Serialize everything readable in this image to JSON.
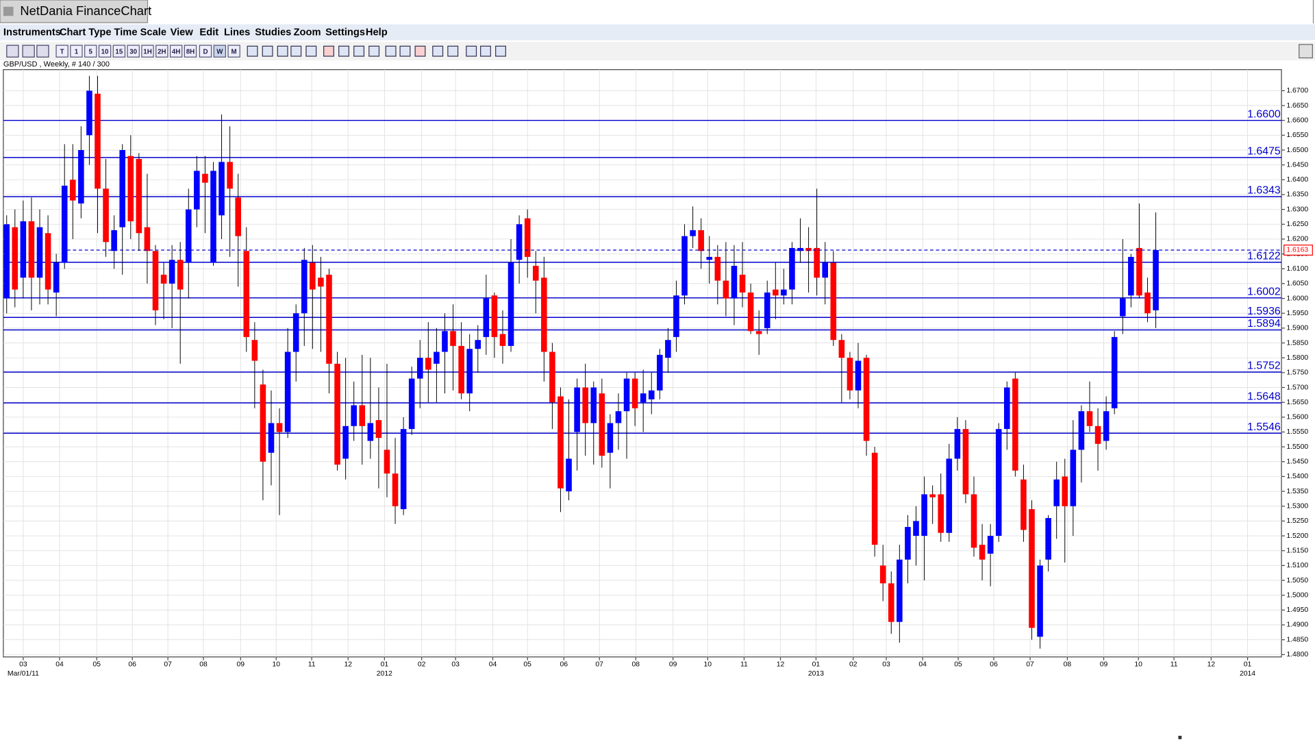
{
  "app": {
    "title": "NetDania FinanceChart",
    "menu": [
      "Instruments",
      "Chart Type",
      "Time Scale",
      "View",
      "Edit",
      "Lines",
      "Studies",
      "Zoom",
      "Settings",
      "Help"
    ],
    "toolbar": [
      "T",
      "1",
      "5",
      "10",
      "15",
      "30",
      "1H",
      "2H",
      "4H",
      "8H",
      "D",
      "W",
      "M"
    ]
  },
  "chart_data": {
    "type": "candlestick",
    "subtitle": "GBP/USD , Weekly, # 140 / 300",
    "up_color": "#0000ff",
    "down_color": "#ff0000",
    "level_color": "#0000cc",
    "grid": true,
    "xlim": [
      -0.4,
      154.2
    ],
    "ylim": [
      1.4792,
      1.6771
    ],
    "open": [
      1.6,
      1.624,
      1.607,
      1.626,
      1.607,
      1.622,
      1.602,
      1.612,
      1.64,
      1.632,
      1.655,
      1.669,
      1.637,
      1.616,
      1.624,
      1.648,
      1.647,
      1.624,
      1.616,
      1.608,
      1.605,
      1.613,
      1.612,
      1.63,
      1.642,
      1.612,
      1.628,
      1.646,
      1.634,
      1.616,
      1.586,
      1.571,
      1.548,
      1.558,
      1.555,
      1.582,
      1.595,
      1.612,
      1.607,
      1.608,
      1.578,
      1.546,
      1.557,
      1.564,
      1.552,
      1.559,
      1.549,
      1.541,
      1.529,
      1.556,
      1.573,
      1.58,
      1.578,
      1.582,
      1.589,
      1.584,
      1.568,
      1.583,
      1.587,
      1.601,
      1.588,
      1.584,
      1.613,
      1.627,
      1.611,
      1.607,
      1.582,
      1.567,
      1.535,
      1.555,
      1.57,
      1.558,
      1.568,
      1.548,
      1.558,
      1.562,
      1.573,
      1.565,
      1.566,
      1.569,
      1.58,
      1.587,
      1.601,
      1.621,
      1.623,
      1.613,
      1.614,
      1.606,
      1.6,
      1.608,
      1.602,
      1.589,
      1.59,
      1.603,
      1.601,
      1.603,
      1.616,
      1.617,
      1.617,
      1.607,
      1.612,
      1.586,
      1.58,
      1.569,
      1.58,
      1.548,
      1.51,
      1.504,
      1.491,
      1.512,
      1.52,
      1.52,
      1.534,
      1.534,
      1.521,
      1.546,
      1.556,
      1.534,
      1.517,
      1.514,
      1.52,
      1.556,
      1.573,
      1.539,
      1.529,
      1.486,
      1.512,
      1.53,
      1.54,
      1.53,
      1.549,
      1.562,
      1.557,
      1.552,
      1.563,
      1.594,
      1.601,
      1.617,
      1.602,
      1.596
    ],
    "high": [
      1.628,
      1.63,
      1.633,
      1.634,
      1.63,
      1.628,
      1.615,
      1.652,
      1.652,
      1.658,
      1.675,
      1.675,
      1.647,
      1.628,
      1.652,
      1.655,
      1.649,
      1.642,
      1.618,
      1.612,
      1.618,
      1.619,
      1.637,
      1.648,
      1.648,
      1.646,
      1.662,
      1.658,
      1.642,
      1.624,
      1.592,
      1.576,
      1.569,
      1.563,
      1.59,
      1.598,
      1.617,
      1.618,
      1.614,
      1.61,
      1.582,
      1.58,
      1.572,
      1.581,
      1.58,
      1.57,
      1.578,
      1.553,
      1.56,
      1.577,
      1.586,
      1.592,
      1.59,
      1.595,
      1.598,
      1.592,
      1.588,
      1.591,
      1.608,
      1.602,
      1.596,
      1.62,
      1.628,
      1.63,
      1.616,
      1.614,
      1.585,
      1.57,
      1.566,
      1.573,
      1.578,
      1.572,
      1.573,
      1.561,
      1.568,
      1.575,
      1.575,
      1.576,
      1.575,
      1.583,
      1.59,
      1.606,
      1.625,
      1.631,
      1.627,
      1.621,
      1.618,
      1.619,
      1.618,
      1.619,
      1.605,
      1.596,
      1.606,
      1.612,
      1.61,
      1.619,
      1.627,
      1.624,
      1.637,
      1.619,
      1.616,
      1.588,
      1.582,
      1.585,
      1.581,
      1.55,
      1.517,
      1.508,
      1.517,
      1.527,
      1.53,
      1.54,
      1.537,
      1.541,
      1.551,
      1.56,
      1.559,
      1.54,
      1.524,
      1.524,
      1.558,
      1.572,
      1.575,
      1.544,
      1.532,
      1.512,
      1.527,
      1.545,
      1.546,
      1.559,
      1.564,
      1.572,
      1.563,
      1.567,
      1.589,
      1.62,
      1.615,
      1.632,
      1.607,
      1.629
    ],
    "low": [
      1.595,
      1.597,
      1.6,
      1.596,
      1.598,
      1.598,
      1.594,
      1.61,
      1.62,
      1.627,
      1.645,
      1.622,
      1.614,
      1.61,
      1.608,
      1.62,
      1.616,
      1.605,
      1.591,
      1.593,
      1.59,
      1.578,
      1.6,
      1.624,
      1.622,
      1.611,
      1.62,
      1.614,
      1.604,
      1.582,
      1.563,
      1.532,
      1.537,
      1.527,
      1.553,
      1.572,
      1.584,
      1.583,
      1.582,
      1.568,
      1.542,
      1.539,
      1.552,
      1.544,
      1.546,
      1.536,
      1.533,
      1.524,
      1.527,
      1.554,
      1.563,
      1.565,
      1.565,
      1.568,
      1.569,
      1.566,
      1.562,
      1.575,
      1.581,
      1.58,
      1.578,
      1.582,
      1.605,
      1.607,
      1.595,
      1.572,
      1.556,
      1.528,
      1.532,
      1.542,
      1.547,
      1.544,
      1.543,
      1.536,
      1.549,
      1.546,
      1.557,
      1.555,
      1.561,
      1.566,
      1.575,
      1.582,
      1.598,
      1.617,
      1.61,
      1.605,
      1.598,
      1.594,
      1.591,
      1.597,
      1.588,
      1.581,
      1.588,
      1.593,
      1.598,
      1.598,
      1.612,
      1.602,
      1.601,
      1.598,
      1.584,
      1.565,
      1.566,
      1.563,
      1.547,
      1.513,
      1.498,
      1.487,
      1.484,
      1.504,
      1.51,
      1.505,
      1.524,
      1.518,
      1.518,
      1.542,
      1.531,
      1.513,
      1.505,
      1.503,
      1.518,
      1.549,
      1.54,
      1.518,
      1.485,
      1.482,
      1.508,
      1.519,
      1.511,
      1.52,
      1.538,
      1.555,
      1.542,
      1.549,
      1.561,
      1.588,
      1.597,
      1.6,
      1.592,
      1.59
    ],
    "close": [
      1.625,
      1.603,
      1.626,
      1.607,
      1.624,
      1.603,
      1.612,
      1.638,
      1.633,
      1.65,
      1.67,
      1.637,
      1.619,
      1.623,
      1.65,
      1.626,
      1.622,
      1.616,
      1.596,
      1.605,
      1.613,
      1.603,
      1.63,
      1.643,
      1.639,
      1.643,
      1.646,
      1.637,
      1.621,
      1.587,
      1.579,
      1.545,
      1.558,
      1.555,
      1.582,
      1.595,
      1.613,
      1.603,
      1.604,
      1.578,
      1.544,
      1.557,
      1.564,
      1.557,
      1.558,
      1.553,
      1.541,
      1.53,
      1.556,
      1.573,
      1.58,
      1.576,
      1.582,
      1.589,
      1.584,
      1.568,
      1.583,
      1.586,
      1.6,
      1.587,
      1.584,
      1.612,
      1.625,
      1.614,
      1.606,
      1.582,
      1.565,
      1.536,
      1.546,
      1.57,
      1.558,
      1.57,
      1.547,
      1.558,
      1.562,
      1.573,
      1.563,
      1.568,
      1.569,
      1.581,
      1.586,
      1.601,
      1.621,
      1.623,
      1.616,
      1.614,
      1.606,
      1.6,
      1.611,
      1.602,
      1.589,
      1.588,
      1.602,
      1.601,
      1.603,
      1.617,
      1.617,
      1.616,
      1.607,
      1.612,
      1.586,
      1.58,
      1.569,
      1.579,
      1.552,
      1.517,
      1.504,
      1.491,
      1.512,
      1.523,
      1.525,
      1.534,
      1.533,
      1.521,
      1.546,
      1.556,
      1.534,
      1.516,
      1.512,
      1.52,
      1.556,
      1.57,
      1.542,
      1.522,
      1.489,
      1.51,
      1.526,
      1.539,
      1.53,
      1.549,
      1.562,
      1.557,
      1.551,
      1.562,
      1.587,
      1.6,
      1.614,
      1.601,
      1.595,
      1.6163
    ],
    "levels": [
      {
        "value": 1.66,
        "label": "1.6600"
      },
      {
        "value": 1.6475,
        "label": "1.6475"
      },
      {
        "value": 1.6343,
        "label": "1.6343"
      },
      {
        "value": 1.6122,
        "label": "1.6122"
      },
      {
        "value": 1.6002,
        "label": "1.6002"
      },
      {
        "value": 1.5936,
        "label": "1.5936"
      },
      {
        "value": 1.5894,
        "label": "1.5894"
      },
      {
        "value": 1.5752,
        "label": "1.5752"
      },
      {
        "value": 1.5648,
        "label": "1.5648"
      },
      {
        "value": 1.5546,
        "label": "1.5546"
      }
    ],
    "last": {
      "value": 1.6163,
      "label": "1.6163"
    },
    "yticks": [
      {
        "value": 1.48,
        "label": "1.4800"
      },
      {
        "value": 1.485,
        "label": "1.4850"
      },
      {
        "value": 1.49,
        "label": "1.4900"
      },
      {
        "value": 1.495,
        "label": "1.4950"
      },
      {
        "value": 1.5,
        "label": "1.5000"
      },
      {
        "value": 1.505,
        "label": "1.5050"
      },
      {
        "value": 1.51,
        "label": "1.5100"
      },
      {
        "value": 1.515,
        "label": "1.5150"
      },
      {
        "value": 1.52,
        "label": "1.5200"
      },
      {
        "value": 1.525,
        "label": "1.5250"
      },
      {
        "value": 1.53,
        "label": "1.5300"
      },
      {
        "value": 1.535,
        "label": "1.5350"
      },
      {
        "value": 1.54,
        "label": "1.5400"
      },
      {
        "value": 1.545,
        "label": "1.5450"
      },
      {
        "value": 1.55,
        "label": "1.5500"
      },
      {
        "value": 1.555,
        "label": "1.5550"
      },
      {
        "value": 1.56,
        "label": "1.5600"
      },
      {
        "value": 1.565,
        "label": "1.5650"
      },
      {
        "value": 1.57,
        "label": "1.5700"
      },
      {
        "value": 1.575,
        "label": "1.5750"
      },
      {
        "value": 1.58,
        "label": "1.5800"
      },
      {
        "value": 1.585,
        "label": "1.5850"
      },
      {
        "value": 1.59,
        "label": "1.5900"
      },
      {
        "value": 1.595,
        "label": "1.5950"
      },
      {
        "value": 1.6,
        "label": "1.6000"
      },
      {
        "value": 1.605,
        "label": "1.6050"
      },
      {
        "value": 1.61,
        "label": "1.6100"
      },
      {
        "value": 1.615,
        "label": "1.6150"
      },
      {
        "value": 1.62,
        "label": "1.6200"
      },
      {
        "value": 1.625,
        "label": "1.6250"
      },
      {
        "value": 1.63,
        "label": "1.6300"
      },
      {
        "value": 1.635,
        "label": "1.6350"
      },
      {
        "value": 1.64,
        "label": "1.6400"
      },
      {
        "value": 1.645,
        "label": "1.6450"
      },
      {
        "value": 1.65,
        "label": "1.6500"
      },
      {
        "value": 1.655,
        "label": "1.6550"
      },
      {
        "value": 1.66,
        "label": "1.6600"
      },
      {
        "value": 1.665,
        "label": "1.6650"
      },
      {
        "value": 1.67,
        "label": "1.6700"
      }
    ],
    "xticks": [
      {
        "value": 2.0,
        "label": "03"
      },
      {
        "value": 6.4,
        "label": "04"
      },
      {
        "value": 10.9,
        "label": "05"
      },
      {
        "value": 15.2,
        "label": "06"
      },
      {
        "value": 19.5,
        "label": "07"
      },
      {
        "value": 23.8,
        "label": "08"
      },
      {
        "value": 28.3,
        "label": "09"
      },
      {
        "value": 32.6,
        "label": "10"
      },
      {
        "value": 36.9,
        "label": "11"
      },
      {
        "value": 41.3,
        "label": "12"
      },
      {
        "value": 45.7,
        "label": "01"
      },
      {
        "value": 50.2,
        "label": "02"
      },
      {
        "value": 54.3,
        "label": "03"
      },
      {
        "value": 58.8,
        "label": "04"
      },
      {
        "value": 63.0,
        "label": "05"
      },
      {
        "value": 67.4,
        "label": "06"
      },
      {
        "value": 71.7,
        "label": "07"
      },
      {
        "value": 76.1,
        "label": "08"
      },
      {
        "value": 80.6,
        "label": "09"
      },
      {
        "value": 84.8,
        "label": "10"
      },
      {
        "value": 89.2,
        "label": "11"
      },
      {
        "value": 93.6,
        "label": "12"
      },
      {
        "value": 97.9,
        "label": "01"
      },
      {
        "value": 102.4,
        "label": "02"
      },
      {
        "value": 106.4,
        "label": "03"
      },
      {
        "value": 110.8,
        "label": "04"
      },
      {
        "value": 115.1,
        "label": "05"
      },
      {
        "value": 119.4,
        "label": "06"
      },
      {
        "value": 123.8,
        "label": "07"
      },
      {
        "value": 128.3,
        "label": "08"
      },
      {
        "value": 132.7,
        "label": "09"
      },
      {
        "value": 136.9,
        "label": "10"
      },
      {
        "value": 141.2,
        "label": "11"
      },
      {
        "value": 145.7,
        "label": "12"
      },
      {
        "value": 150.1,
        "label": "01"
      }
    ],
    "xticks2": [
      {
        "value": 2.0,
        "label": "Mar/01/11"
      },
      {
        "value": 45.7,
        "label": "2012"
      },
      {
        "value": 97.9,
        "label": "2013"
      },
      {
        "value": 150.1,
        "label": "2014"
      }
    ]
  }
}
